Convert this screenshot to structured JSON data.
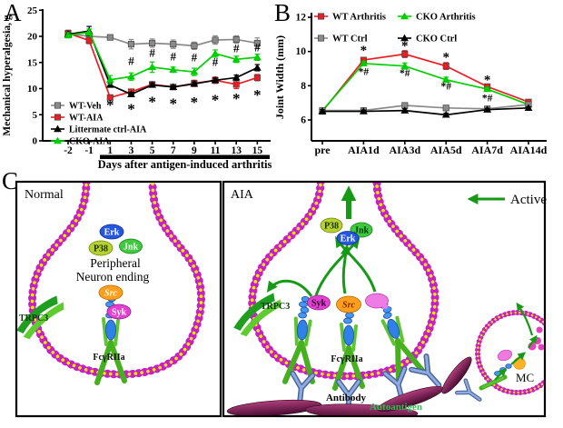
{
  "panel_labels": {
    "a": "A",
    "b": "B",
    "c": "C"
  },
  "colors": {
    "red": "#ed1c24",
    "green": "#00ce00",
    "gray": "#8a8a8a",
    "black": "#000000",
    "membrane_magenta": "#c61fc6",
    "membrane_yellow": "#ffe900",
    "arrow_green": "#169a16",
    "autoantigen_purple": "#7b2056"
  },
  "chart_data": [
    {
      "id": "chartA",
      "type": "line",
      "ylabel": "Mechanical hyperalgesia, g",
      "xlabel": "Days after antigen-induced arthritis",
      "ylim": [
        0,
        25
      ],
      "yticks": [
        0,
        5,
        10,
        15,
        20,
        25
      ],
      "categories": [
        "-2",
        "-1",
        "1",
        "3",
        "5",
        "7",
        "9",
        "11",
        "13",
        "15"
      ],
      "legend_position": "inside-bottom-left",
      "grid": false,
      "xaxis_bar": {
        "from": "1",
        "to": "15"
      },
      "series": [
        {
          "name": "WT-Veh",
          "color": "#8a8a8a",
          "marker": "square",
          "values": [
            20.5,
            20.0,
            19.8,
            18.5,
            18.7,
            18.5,
            18.2,
            19.3,
            19.4,
            18.7
          ],
          "errors": [
            0.7,
            1.0,
            0.4,
            0.9,
            0.8,
            0.8,
            0.7,
            0.8,
            0.7,
            1.0
          ]
        },
        {
          "name": "WT-AIA",
          "color": "#ed1c24",
          "marker": "square",
          "values": [
            20.6,
            19.2,
            8.3,
            9.4,
            10.8,
            10.3,
            11.0,
            11.6,
            10.8,
            12.1
          ],
          "errors": [
            0.5,
            0.6,
            0.4,
            0.4,
            0.5,
            0.4,
            0.6,
            0.6,
            0.8,
            0.6
          ]
        },
        {
          "name": "Littermate ctrl-AIA",
          "color": "#000000",
          "marker": "triangle",
          "values": [
            20.4,
            21.0,
            10.7,
            8.9,
            10.7,
            10.3,
            10.9,
            11.6,
            12.1,
            14.0
          ],
          "errors": [
            0.4,
            0.9,
            0.4,
            0.4,
            0.4,
            0.3,
            0.4,
            0.4,
            0.5,
            0.6
          ]
        },
        {
          "name": "CKO-AIA",
          "color": "#00ce00",
          "marker": "triangle",
          "values": [
            20.2,
            20.8,
            11.7,
            12.3,
            14.1,
            13.6,
            13.2,
            16.7,
            15.6,
            16.0
          ],
          "errors": [
            0.5,
            0.6,
            0.8,
            0.7,
            1.0,
            0.5,
            0.7,
            0.7,
            0.6,
            0.6
          ]
        }
      ],
      "annotations": {
        "hash": {
          "symbol": "#",
          "points": [
            [
              "3",
              15.3
            ],
            [
              "5",
              16.9
            ],
            [
              "7",
              16.2
            ],
            [
              "9",
              16.0
            ],
            [
              "11",
              15.1
            ],
            [
              "13",
              17.7
            ],
            [
              "15",
              17.9
            ]
          ]
        },
        "star": {
          "symbol": "*",
          "points": [
            [
              "1",
              7.0
            ],
            [
              "3",
              6.2
            ],
            [
              "5",
              7.6
            ],
            [
              "7",
              7.2
            ],
            [
              "9",
              7.5
            ],
            [
              "11",
              7.9
            ],
            [
              "13",
              8.2
            ],
            [
              "15",
              8.9
            ]
          ]
        }
      }
    },
    {
      "id": "chartB",
      "type": "line",
      "ylabel": "Joint Width (mm)",
      "xlabel": "",
      "ylim": [
        5,
        12.2
      ],
      "yticks": [
        6,
        8,
        10,
        12
      ],
      "categories": [
        "pre",
        "AIA1d",
        "AIA3d",
        "AIA5d",
        "AIA7d",
        "AIA14d"
      ],
      "legend_position": "top",
      "grid": false,
      "series": [
        {
          "name": "WT Arthritis",
          "color": "#ed1c24",
          "marker": "square",
          "values": [
            6.5,
            9.5,
            9.85,
            9.15,
            7.95,
            7.05
          ],
          "errors": [
            0.15,
            0.15,
            0.2,
            0.2,
            0.12,
            0.12
          ]
        },
        {
          "name": "CKO Arthritis",
          "color": "#00ce00",
          "marker": "triangle",
          "values": [
            6.55,
            9.3,
            9.15,
            8.35,
            7.8,
            6.9
          ],
          "errors": [
            0.1,
            0.12,
            0.18,
            0.15,
            0.1,
            0.1
          ]
        },
        {
          "name": "WT Ctrl",
          "color": "#8a8a8a",
          "marker": "square",
          "values": [
            6.55,
            6.55,
            6.85,
            6.7,
            6.65,
            6.9
          ],
          "errors": [
            0.12,
            0.1,
            0.12,
            0.15,
            0.12,
            0.1
          ]
        },
        {
          "name": "CKO Ctrl",
          "color": "#000000",
          "marker": "triangle",
          "values": [
            6.5,
            6.5,
            6.55,
            6.3,
            6.6,
            6.7
          ],
          "errors": [
            0.1,
            0.08,
            0.1,
            0.1,
            0.08,
            0.08
          ]
        }
      ],
      "annotations": {
        "star": {
          "symbol": "*",
          "points": [
            [
              "AIA1d",
              10.1
            ],
            [
              "AIA3d",
              10.35
            ],
            [
              "AIA5d",
              9.7
            ],
            [
              "AIA7d",
              8.35
            ]
          ]
        },
        "starhash": {
          "symbol": "*#",
          "points": [
            [
              "AIA1d",
              8.85
            ],
            [
              "AIA3d",
              8.75
            ],
            [
              "AIA5d",
              8.0
            ],
            [
              "AIA7d",
              7.3
            ]
          ]
        }
      }
    }
  ],
  "diagram": {
    "active_label": "Active",
    "normal": {
      "title": "Normal",
      "erk": "Erk",
      "p38": "P38",
      "jnk": "Jnk",
      "center1": "Peripheral",
      "center2": "Neuron ending",
      "src": "Src",
      "syk": "Syk",
      "trpc3": "TRPC3",
      "receptor": "FcγRIIa"
    },
    "aia": {
      "title": "AIA",
      "erk": "Erk",
      "p38": "P38",
      "jnk": "Jnk",
      "src": "Src",
      "syk": "Syk",
      "trpc3": "TRPC3",
      "receptor": "FcγRIIa",
      "antibody": "Antibody",
      "autoantigen": "Autoantigen",
      "mc": "MC"
    }
  }
}
